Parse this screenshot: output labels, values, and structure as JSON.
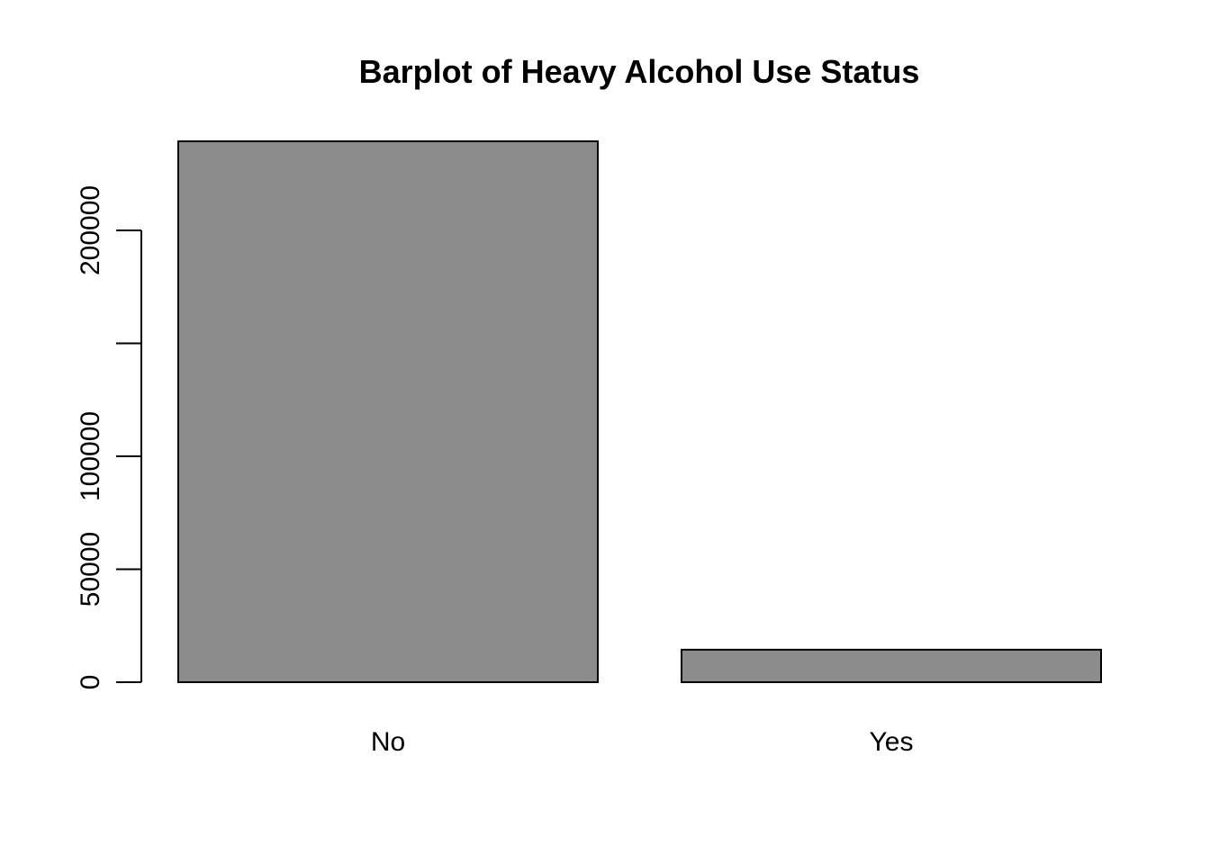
{
  "chart_data": {
    "type": "bar",
    "title": "Barplot of Heavy Alcohol Use Status",
    "xlabel": "",
    "ylabel": "",
    "categories": [
      "No",
      "Yes"
    ],
    "values": [
      239424,
      14386
    ],
    "ylim": [
      0,
      239424
    ],
    "yticks": [
      0,
      50000,
      100000,
      150000,
      200000
    ],
    "ytick_labels": [
      "0",
      "50000",
      "100000",
      "",
      "200000"
    ],
    "grid": false,
    "bar_color": "#8c8c8c",
    "bar_border_color": "#000000"
  }
}
